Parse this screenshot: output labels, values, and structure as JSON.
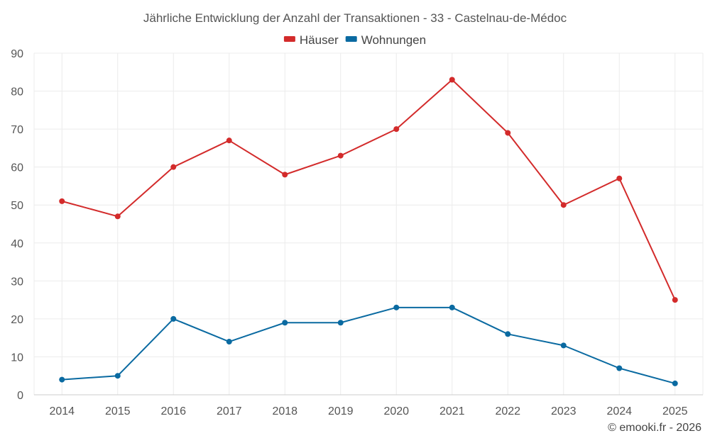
{
  "chart_data": {
    "type": "line",
    "title": "Jährliche Entwicklung der Anzahl der Transaktionen - 33 - Castelnau-de-Médoc",
    "categories": [
      "2014",
      "2015",
      "2016",
      "2017",
      "2018",
      "2019",
      "2020",
      "2021",
      "2022",
      "2023",
      "2024",
      "2025"
    ],
    "series": [
      {
        "name": "Häuser",
        "color": "#d32b2b",
        "values": [
          51,
          47,
          60,
          67,
          58,
          63,
          70,
          83,
          69,
          50,
          57,
          25
        ]
      },
      {
        "name": "Wohnungen",
        "color": "#0a6aa1",
        "values": [
          4,
          5,
          20,
          14,
          19,
          19,
          23,
          23,
          16,
          13,
          7,
          3
        ]
      }
    ],
    "ylim": [
      0,
      90
    ],
    "yticks": [
      0,
      10,
      20,
      30,
      40,
      50,
      60,
      70,
      80,
      90
    ],
    "grid": true,
    "legend": "top-center",
    "xlabel": "",
    "ylabel": ""
  },
  "credit": "© emooki.fr - 2026"
}
